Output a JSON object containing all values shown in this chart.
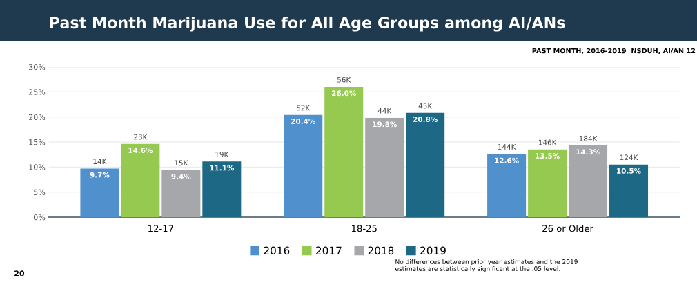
{
  "chart_data": {
    "type": "bar",
    "title": "Past Month Marijuana Use for All Age Groups among AI/ANs",
    "subtitle": "PAST MONTH, 2016-2019  NSDUH, AI/AN 12",
    "categories": [
      "12-17",
      "18-25",
      "26 or Older"
    ],
    "series": [
      {
        "name": "2016",
        "color": "#4f90cd",
        "values": [
          9.7,
          20.4,
          12.6
        ],
        "value_labels": [
          "9.7%",
          "20.4%",
          "12.6%"
        ]
      },
      {
        "name": "2017",
        "color": "#96c94f",
        "values": [
          14.6,
          26.0,
          13.5
        ],
        "value_labels": [
          "14.6%",
          "26.0%",
          "13.5%"
        ]
      },
      {
        "name": "2018",
        "color": "#a5a7aa",
        "values": [
          9.4,
          19.8,
          14.3
        ],
        "value_labels": [
          "9.4%",
          "19.8%",
          "14.3%"
        ]
      },
      {
        "name": "2019",
        "color": "#1d6884",
        "values": [
          11.1,
          20.8,
          10.5
        ],
        "value_labels": [
          "11.1%",
          "20.8%",
          "10.5%"
        ]
      }
    ],
    "ylim": [
      0,
      30
    ],
    "yticks": [
      {
        "value": 0,
        "label": "0%"
      },
      {
        "value": 5,
        "label": "5%"
      },
      {
        "value": 10,
        "label": "10%"
      },
      {
        "value": 15,
        "label": "15%"
      },
      {
        "value": 20,
        "label": "20%"
      },
      {
        "value": 25,
        "label": "25%"
      },
      {
        "value": 30,
        "label": "30%"
      }
    ],
    "grid": "y",
    "legend": "bottom",
    "annotations": [
      "No differences between prior year estimates and the 2019\nestimates are statistically significant at the .05 level.",
      "20",
      "14K",
      "52K",
      "144K",
      "23K",
      "56K",
      "146K",
      "15K",
      "44K",
      "184K",
      "19K",
      "45K",
      "124K"
    ]
  }
}
